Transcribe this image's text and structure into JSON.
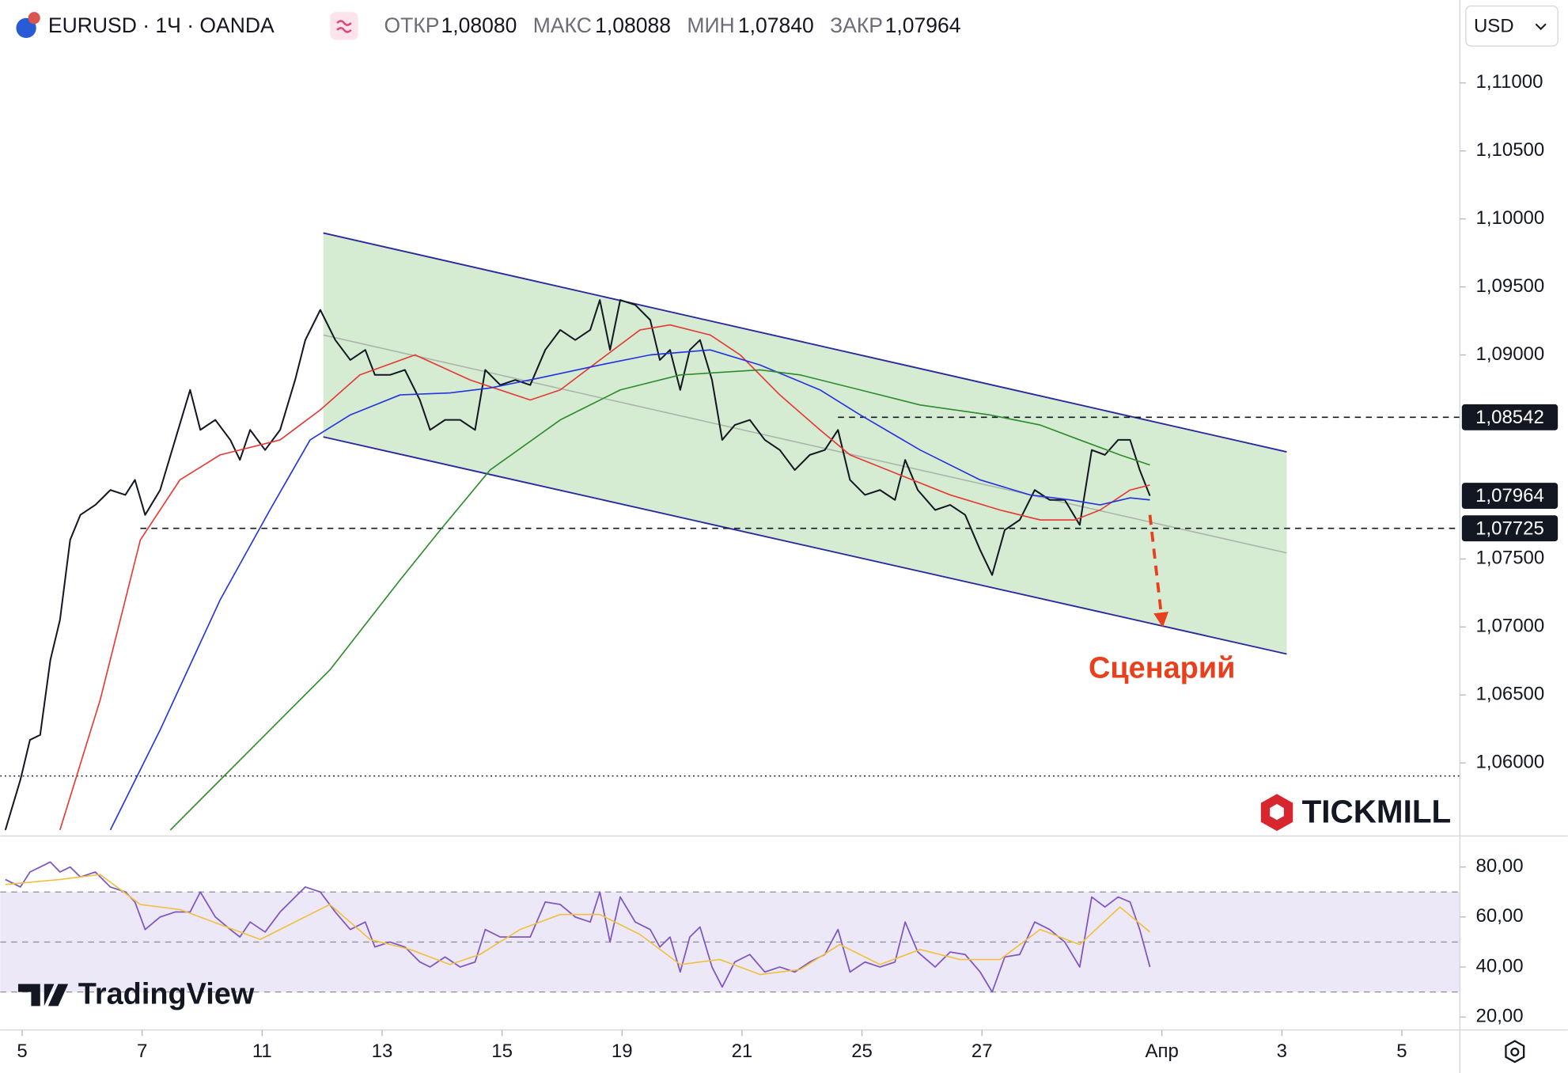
{
  "header": {
    "symbol": "EURUSD · 1Ч · OANDA",
    "ohlc": [
      {
        "name": "ОТКР",
        "value": "1,08080"
      },
      {
        "name": "МАКС",
        "value": "1,08088"
      },
      {
        "name": "МИН",
        "value": "1,07840"
      },
      {
        "name": "ЗАКР",
        "value": "1,07964"
      }
    ],
    "currency": "USD"
  },
  "watermarks": {
    "broker": "TICKMILL",
    "platform": "TradingView"
  },
  "chart_data": [
    {
      "type": "line",
      "x": [
        -0.28,
        -0.03,
        0.13,
        0.3,
        0.47,
        0.63,
        0.8,
        0.97,
        1.22,
        1.47,
        1.72,
        1.88,
        2.05,
        2.3,
        2.55,
        2.8,
        2.97,
        3.22,
        3.47,
        3.63,
        3.8,
        4.05,
        4.3,
        4.55,
        4.72,
        4.97,
        5.22,
        5.47,
        5.72,
        5.88,
        6.13,
        6.38,
        6.63,
        6.8,
        7.05,
        7.3,
        7.55,
        7.72,
        7.97,
        8.22,
        8.47,
        8.72,
        8.97,
        9.22,
        9.47,
        9.63,
        9.8,
        9.97,
        10.22,
        10.47,
        10.63,
        10.8,
        10.97,
        11.13,
        11.3,
        11.5,
        11.67,
        11.88,
        12.13,
        12.38,
        12.63,
        12.88,
        13.13,
        13.38,
        13.6,
        13.8,
        14.05,
        14.3,
        14.55,
        14.72,
        14.93,
        15.22,
        15.47,
        15.72,
        15.97,
        16.17,
        16.38,
        16.63,
        16.88,
        17.13,
        17.38,
        17.63,
        17.83,
        18.05,
        18.27,
        18.47,
        18.63,
        18.8
      ],
      "series": [
        {
          "color": "#131722",
          "values": [
            1.05507,
            1.05875,
            1.06169,
            1.06206,
            1.06757,
            1.07051,
            1.0764,
            1.07824,
            1.07897,
            1.08007,
            1.07971,
            1.08081,
            1.07824,
            1.08007,
            1.08375,
            1.08743,
            1.08449,
            1.08522,
            1.08375,
            1.08228,
            1.08449,
            1.08301,
            1.08449,
            1.08816,
            1.0911,
            1.09331,
            1.0911,
            1.08963,
            1.09037,
            1.08853,
            1.08853,
            1.0889,
            1.08669,
            1.08449,
            1.08522,
            1.08522,
            1.08449,
            1.0889,
            1.08779,
            1.08816,
            1.08779,
            1.09037,
            1.09184,
            1.0911,
            1.09184,
            1.09404,
            1.09037,
            1.09404,
            1.09368,
            1.09257,
            1.08963,
            1.09037,
            1.08743,
            1.09037,
            1.0911,
            1.08816,
            1.08375,
            1.08485,
            1.08522,
            1.08375,
            1.08301,
            1.08154,
            1.08265,
            1.08301,
            1.08449,
            1.08081,
            1.07971,
            1.08007,
            1.07934,
            1.08228,
            1.08007,
            1.0786,
            1.07897,
            1.07824,
            1.07566,
            1.07382,
            1.07713,
            1.07787,
            1.08007,
            1.07934,
            1.07934,
            1.0775,
            1.08301,
            1.08265,
            1.08375,
            1.08375,
            1.08154,
            1.07964
          ]
        },
        {
          "color": "#e53935",
          "x": [
            0.63,
            1.3,
            1.97,
            2.63,
            3.3,
            4.3,
            4.97,
            5.63,
            6.55,
            7.47,
            8.47,
            8.97,
            9.63,
            10.3,
            10.8,
            11.47,
            11.97,
            12.63,
            13.3,
            13.8,
            14.63,
            15.47,
            16.3,
            16.97,
            17.55,
            17.97,
            18.47,
            18.8
          ],
          "values": [
            1.05507,
            1.06463,
            1.0764,
            1.08081,
            1.08265,
            1.08375,
            1.08596,
            1.08853,
            1.09,
            1.08816,
            1.08669,
            1.08743,
            1.08963,
            1.09184,
            1.09221,
            1.09147,
            1.09,
            1.08706,
            1.08449,
            1.08265,
            1.08118,
            1.07971,
            1.0786,
            1.07787,
            1.07787,
            1.0786,
            1.08007,
            1.08044
          ]
        },
        {
          "color": "#2433e0",
          "x": [
            1.47,
            2.3,
            3.3,
            4.13,
            4.8,
            5.47,
            6.3,
            7.13,
            7.8,
            8.63,
            9.63,
            10.47,
            11.47,
            12.3,
            13.3,
            13.97,
            14.97,
            15.97,
            16.8,
            17.47,
            17.97,
            18.47,
            18.8
          ],
          "values": [
            1.05507,
            1.06243,
            1.07199,
            1.0786,
            1.08375,
            1.08559,
            1.08706,
            1.08721,
            1.08757,
            1.08831,
            1.08926,
            1.09,
            1.09037,
            1.08926,
            1.08743,
            1.08559,
            1.08301,
            1.08081,
            1.07971,
            1.07934,
            1.07897,
            1.07949,
            1.07934
          ]
        },
        {
          "color": "#2e8b2e",
          "x": [
            2.47,
            3.8,
            5.13,
            6.3,
            6.97,
            7.8,
            8.97,
            9.97,
            10.97,
            12.3,
            12.97,
            13.97,
            14.97,
            16.13,
            16.97,
            17.63,
            18.3,
            18.8
          ],
          "values": [
            1.05507,
            1.06096,
            1.06684,
            1.07346,
            1.07713,
            1.08154,
            1.08522,
            1.08743,
            1.08853,
            1.0889,
            1.08853,
            1.08743,
            1.08632,
            1.08559,
            1.08485,
            1.08375,
            1.08265,
            1.08191
          ]
        }
      ],
      "channel": {
        "x": [
          5.02,
          21.08
        ],
        "upper": [
          1.09897,
          1.08287
        ],
        "middle": [
          1.09147,
          1.07544
        ],
        "lower": [
          1.08397,
          1.06801
        ],
        "color": "#2a2aa0",
        "fill": "#d5ecd3"
      },
      "levels": [
        {
          "value": 1.08542,
          "label": "1,08542",
          "from": 13.6
        },
        {
          "value": 1.07725,
          "label": "1,07725",
          "from": 1.97
        }
      ],
      "last_price": {
        "value": 1.07964,
        "label": "1,07964"
      },
      "dotted_level": 1.05904,
      "scenario": {
        "label": "Сценарий",
        "x": [
          18.8,
          19.0
        ],
        "values": [
          1.07824,
          1.07051
        ],
        "color": "#e8401c"
      },
      "xlim": [
        -0.3667,
        23.9667
      ],
      "xticks": [
        {
          "value": 0,
          "label": "5"
        },
        {
          "value": 2,
          "label": "7"
        },
        {
          "value": 4,
          "label": "11"
        },
        {
          "value": 6,
          "label": "13"
        },
        {
          "value": 8,
          "label": "15"
        },
        {
          "value": 10,
          "label": "19"
        },
        {
          "value": 12,
          "label": "21"
        },
        {
          "value": 14,
          "label": "25"
        },
        {
          "value": 16,
          "label": "27"
        },
        {
          "value": 19,
          "label": "Апр"
        },
        {
          "value": 21,
          "label": "3"
        },
        {
          "value": 23,
          "label": "5"
        }
      ],
      "ylim": [
        1.0547,
        1.1161
      ],
      "yticks": [
        {
          "value": 1.11,
          "label": "1,11000"
        },
        {
          "value": 1.105,
          "label": "1,10500"
        },
        {
          "value": 1.1,
          "label": "1,10000"
        },
        {
          "value": 1.095,
          "label": "1,09500"
        },
        {
          "value": 1.09,
          "label": "1,09000"
        },
        {
          "value": 1.075,
          "label": "1,07500"
        },
        {
          "value": 1.07,
          "label": "1,07000"
        },
        {
          "value": 1.065,
          "label": "1,06500"
        },
        {
          "value": 1.06,
          "label": "1,06000"
        }
      ]
    },
    {
      "type": "line",
      "series": [
        {
          "color": "#7e57c2",
          "values": [
            75,
            72,
            78,
            80,
            82,
            78,
            80,
            76,
            78,
            72,
            70,
            66,
            55,
            60,
            62,
            62,
            70,
            60,
            55,
            52,
            58,
            54,
            62,
            68,
            72,
            70,
            62,
            55,
            58,
            48,
            50,
            48,
            42,
            40,
            44,
            40,
            42,
            55,
            52,
            52,
            52,
            66,
            65,
            60,
            58,
            70,
            50,
            68,
            58,
            55,
            48,
            52,
            38,
            52,
            56,
            40,
            32,
            42,
            45,
            38,
            40,
            38,
            42,
            45,
            55,
            38,
            42,
            40,
            42,
            58,
            46,
            40,
            46,
            45,
            38,
            30,
            44,
            45,
            58,
            55,
            50,
            40,
            68,
            64,
            68,
            66,
            55,
            40
          ]
        },
        {
          "color": "#f0c040",
          "x": [
            -0.28,
            0.63,
            1.3,
            1.97,
            2.63,
            3.3,
            3.97,
            4.63,
            5.13,
            5.8,
            6.47,
            7.13,
            7.63,
            8.3,
            8.97,
            9.63,
            10.3,
            10.97,
            11.63,
            12.3,
            12.97,
            13.63,
            14.3,
            14.97,
            15.63,
            16.3,
            16.97,
            17.63,
            18.3,
            18.8
          ],
          "values": [
            73,
            75,
            77,
            65,
            63,
            57,
            51,
            59,
            65,
            51,
            47,
            41,
            45,
            55,
            61,
            61,
            53,
            41,
            43,
            37,
            39,
            49,
            41,
            47,
            43,
            43,
            55,
            49,
            64,
            54
          ]
        }
      ],
      "band": [
        30,
        70
      ],
      "midline": 50,
      "band_color": "#ede8f7",
      "ylim": [
        14.8,
        91.6
      ],
      "yticks": [
        {
          "value": 80,
          "label": "80,00"
        },
        {
          "value": 60,
          "label": "60,00"
        },
        {
          "value": 40,
          "label": "40,00"
        },
        {
          "value": 20,
          "label": "20,00"
        }
      ]
    }
  ]
}
